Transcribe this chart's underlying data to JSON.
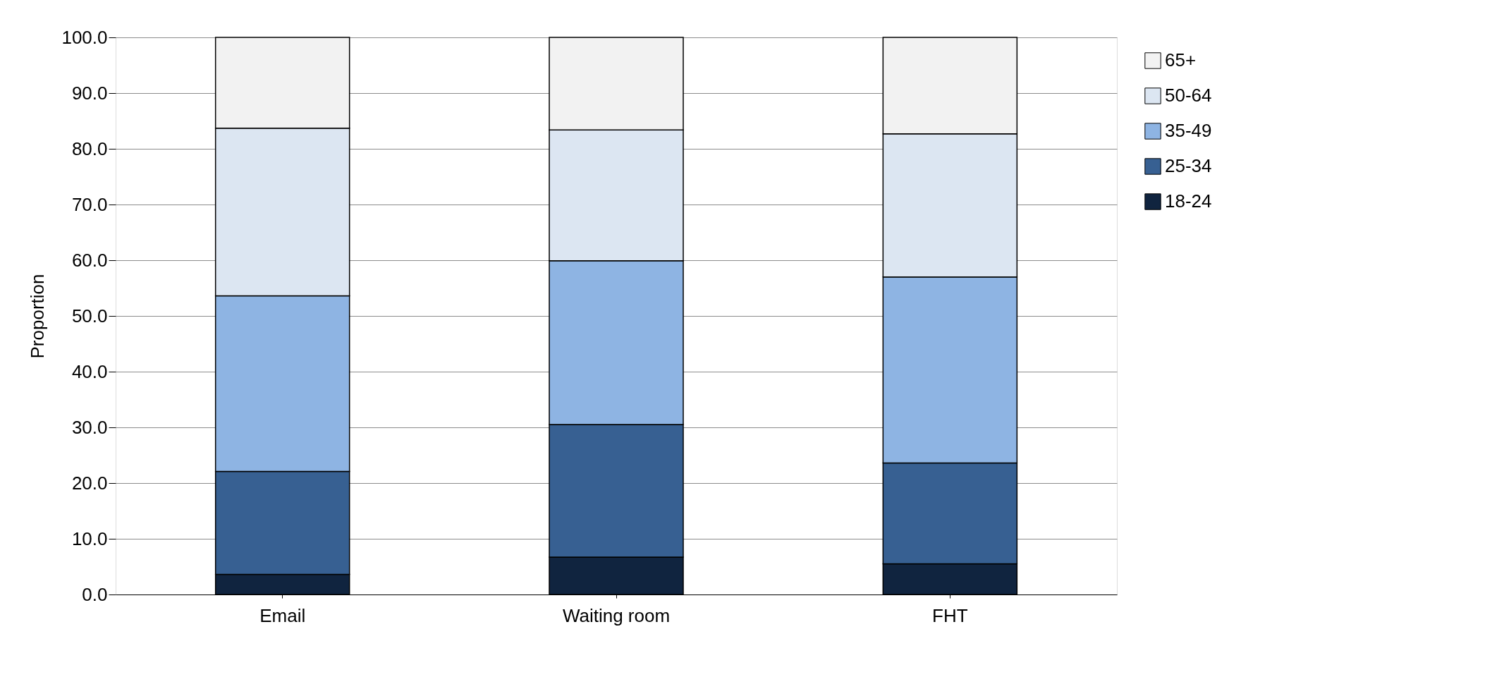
{
  "chart_data": {
    "type": "bar",
    "stacked": true,
    "ylabel": "Proportion",
    "categories": [
      "Email",
      "Waiting room",
      "FHT"
    ],
    "series": [
      {
        "name": "18-24",
        "color": "#10243f",
        "values": [
          3.6,
          6.7,
          5.5
        ]
      },
      {
        "name": "25-34",
        "color": "#376092",
        "values": [
          18.5,
          23.8,
          18.1
        ]
      },
      {
        "name": "35-49",
        "color": "#8eb4e3",
        "values": [
          31.5,
          29.4,
          33.4
        ]
      },
      {
        "name": "50-64",
        "color": "#dce6f2",
        "values": [
          30.1,
          23.5,
          25.7
        ]
      },
      {
        "name": "65+",
        "color": "#f2f2f2",
        "values": [
          16.3,
          16.6,
          17.3
        ]
      }
    ],
    "ylim": [
      0,
      100
    ],
    "yticks": [
      {
        "value": 0,
        "label": "0.0"
      },
      {
        "value": 10,
        "label": "10.0"
      },
      {
        "value": 20,
        "label": "20.0"
      },
      {
        "value": 30,
        "label": "30.0"
      },
      {
        "value": 40,
        "label": "40.0"
      },
      {
        "value": 50,
        "label": "50.0"
      },
      {
        "value": 60,
        "label": "60.0"
      },
      {
        "value": 70,
        "label": "70.0"
      },
      {
        "value": 80,
        "label": "80.0"
      },
      {
        "value": 90,
        "label": "90.0"
      },
      {
        "value": 100,
        "label": "100.0"
      }
    ],
    "grid": "y",
    "legend": "right"
  }
}
